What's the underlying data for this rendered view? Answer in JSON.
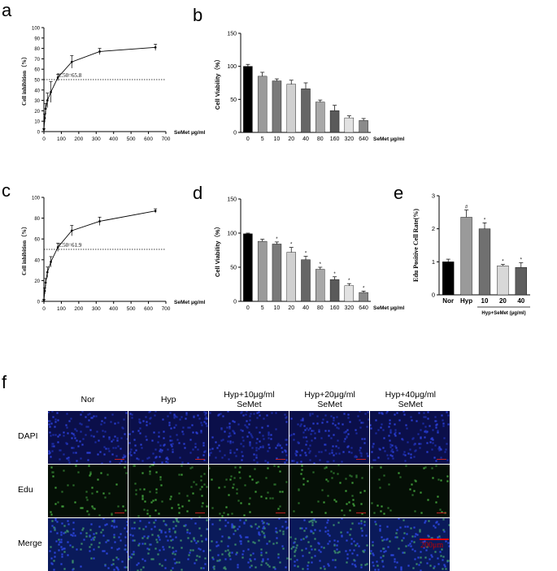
{
  "panels": {
    "a": {
      "letter": "a"
    },
    "b": {
      "letter": "b"
    },
    "c": {
      "letter": "c"
    },
    "d": {
      "letter": "d"
    },
    "e": {
      "letter": "e"
    },
    "f": {
      "letter": "f"
    }
  },
  "chart_data": [
    {
      "id": "a",
      "type": "line",
      "ylabel": "Cell inhibition（%）",
      "xlabel": "SeMet μg/ml",
      "x": [
        0,
        5,
        10,
        20,
        40,
        80,
        160,
        320,
        640
      ],
      "y": [
        2,
        13,
        22,
        30,
        38,
        52,
        67,
        77,
        81
      ],
      "err": [
        1,
        4,
        5,
        7,
        10,
        3,
        6,
        3,
        3
      ],
      "xlim": [
        0,
        700
      ],
      "ylim": [
        0,
        100
      ],
      "xticks": [
        0,
        100,
        200,
        300,
        400,
        500,
        600,
        700
      ],
      "yticks": [
        0,
        10,
        20,
        30,
        40,
        50,
        60,
        70,
        80,
        90,
        100
      ],
      "reference_line": 50,
      "annotation": "IC50=65.8"
    },
    {
      "id": "b",
      "type": "bar",
      "ylabel": "Cell Viability（%）",
      "xlabel": "SeMet μg/ml",
      "categories": [
        "0",
        "5",
        "10",
        "20",
        "40",
        "80",
        "160",
        "320",
        "640"
      ],
      "values": [
        100,
        85,
        78,
        73,
        66,
        46,
        33,
        22,
        18
      ],
      "err": [
        3,
        6,
        3,
        6,
        9,
        3,
        8,
        3,
        3
      ],
      "colors": [
        "#000000",
        "#9a9a9a",
        "#7a7a7a",
        "#d0d0d0",
        "#666666",
        "#a8a8a8",
        "#5a5a5a",
        "#e2e2e2",
        "#8a8a8a"
      ],
      "ylim": [
        0,
        150
      ],
      "yticks": [
        0,
        50,
        100,
        150
      ]
    },
    {
      "id": "c",
      "type": "line",
      "ylabel": "Cell inhibition（%）",
      "xlabel": "SeMet μg/ml",
      "x": [
        0,
        5,
        10,
        20,
        40,
        80,
        160,
        320,
        640
      ],
      "y": [
        1,
        10,
        18,
        28,
        38,
        52,
        68,
        77,
        87
      ],
      "err": [
        1,
        3,
        4,
        5,
        5,
        4,
        5,
        4,
        2
      ],
      "xlim": [
        0,
        700
      ],
      "ylim": [
        0,
        100
      ],
      "xticks": [
        0,
        100,
        200,
        300,
        400,
        500,
        600,
        700
      ],
      "yticks": [
        0,
        20,
        40,
        60,
        80,
        100
      ],
      "reference_line": 50,
      "annotation": "IC50=61.9"
    },
    {
      "id": "d",
      "type": "bar",
      "ylabel": "Cell Viability（%）",
      "xlabel": "SeMet μg/ml",
      "categories": [
        "0",
        "5",
        "10",
        "20",
        "40",
        "80",
        "160",
        "320",
        "640"
      ],
      "values": [
        99,
        88,
        84,
        72,
        61,
        47,
        32,
        23,
        13
      ],
      "err": [
        1,
        3,
        3,
        7,
        5,
        3,
        4,
        3,
        2
      ],
      "marks": [
        "",
        "",
        "*",
        "*",
        "*",
        "*",
        "*",
        "*",
        "*"
      ],
      "colors": [
        "#000000",
        "#9a9a9a",
        "#7a7a7a",
        "#d0d0d0",
        "#666666",
        "#a8a8a8",
        "#5a5a5a",
        "#e2e2e2",
        "#8a8a8a"
      ],
      "ylim": [
        0,
        150
      ],
      "yticks": [
        0,
        50,
        100,
        150
      ]
    },
    {
      "id": "e",
      "type": "bar",
      "ylabel": "Edu Positive Cell Rate(%)",
      "group_label": "Hyp+SeMet (μg/ml)",
      "categories": [
        "Nor",
        "Hyp",
        "10",
        "20",
        "40"
      ],
      "values": [
        1.0,
        2.35,
        2.0,
        0.88,
        0.83
      ],
      "err": [
        0.08,
        0.22,
        0.18,
        0.04,
        0.14
      ],
      "marks": [
        "",
        "#",
        "*",
        "*",
        "*"
      ],
      "colors": [
        "#000000",
        "#9a9a9a",
        "#707070",
        "#d8d8d8",
        "#5e5e5e"
      ],
      "ylim": [
        0,
        3
      ],
      "yticks": [
        0,
        1,
        2,
        3
      ]
    }
  ],
  "microscopy": {
    "columns": [
      "Nor",
      "Hyp",
      "Hyp+10μg/ml\nSeMet",
      "Hyp+20μg/ml\nSeMet",
      "Hyp+40μg/ml\nSeMet"
    ],
    "rows": [
      "DAPI",
      "Edu",
      "Merge"
    ],
    "scalebar_label": "200μm"
  },
  "colors": {
    "scalebar": "#e00000"
  }
}
